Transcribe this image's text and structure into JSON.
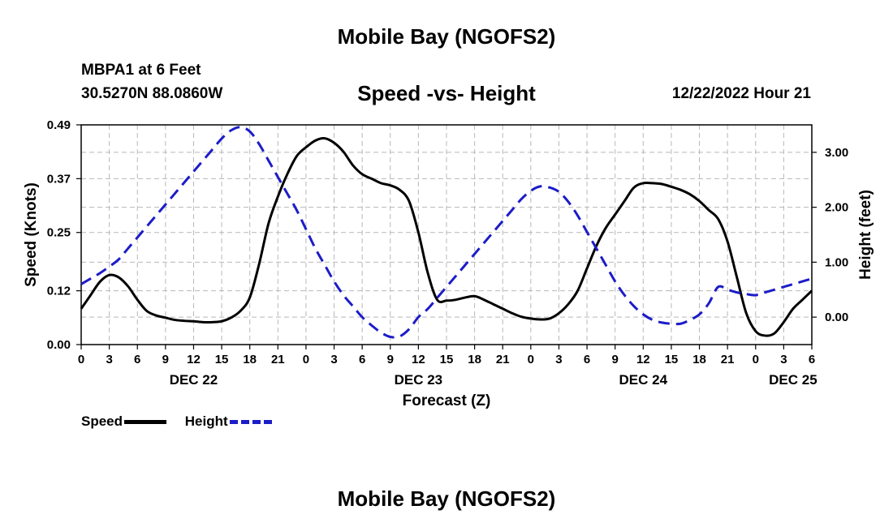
{
  "page": {
    "title": "Mobile Bay (NGOFS2)",
    "title_repeat": "Mobile Bay (NGOFS2)",
    "station": "MBPA1 at 6 Feet",
    "coords": "30.5270N  88.0860W",
    "subtitle": "Speed -vs- Height",
    "datetime": "12/22/2022 Hour 21"
  },
  "legend": {
    "speed_label": "Speed",
    "height_label": "Height"
  },
  "colors": {
    "speed": "#000000",
    "height": "#1c1cc8",
    "grid": "#b8b8b8"
  },
  "chart_data": {
    "type": "line",
    "title": "Speed -vs- Height",
    "xlabel": "Forecast (Z)",
    "ylabel_left": "Speed (Knots)",
    "ylabel_right": "Height (feet)",
    "xlim": [
      0,
      78
    ],
    "ylim_left": [
      0,
      0.49
    ],
    "ylim_right": [
      -0.5,
      3.5
    ],
    "x_ticks": [
      0,
      3,
      6,
      9,
      12,
      15,
      18,
      21,
      24,
      27,
      30,
      33,
      36,
      39,
      42,
      45,
      48,
      51,
      54,
      57,
      60,
      63,
      66,
      69,
      72,
      75,
      78
    ],
    "x_tick_labels": [
      "0",
      "3",
      "6",
      "9",
      "12",
      "15",
      "18",
      "21",
      "0",
      "3",
      "6",
      "9",
      "12",
      "15",
      "18",
      "21",
      "0",
      "3",
      "6",
      "9",
      "12",
      "15",
      "18",
      "21",
      "0",
      "3",
      "6"
    ],
    "day_labels": [
      {
        "x": 12,
        "label": "DEC 22"
      },
      {
        "x": 36,
        "label": "DEC 23"
      },
      {
        "x": 60,
        "label": "DEC 24"
      },
      {
        "x": 76,
        "label": "DEC 25"
      }
    ],
    "y_left_ticks": [
      0.0,
      0.12,
      0.25,
      0.37,
      0.49
    ],
    "y_left_tick_labels": [
      "0.00",
      "0.12",
      "0.25",
      "0.37",
      "0.49"
    ],
    "y_right_ticks": [
      0.0,
      1.0,
      2.0,
      3.0
    ],
    "y_right_tick_labels": [
      "0.00",
      "1.00",
      "2.00",
      "3.00"
    ],
    "grid": true,
    "series": [
      {
        "name": "Speed",
        "axis": "left",
        "style": "solid",
        "x": [
          0,
          1,
          2,
          3,
          4,
          5,
          6,
          7,
          8,
          9,
          10,
          11,
          12,
          13,
          14,
          15,
          16,
          17,
          18,
          19,
          20,
          21,
          22,
          23,
          24,
          25,
          26,
          27,
          28,
          29,
          30,
          31,
          32,
          33,
          34,
          35,
          36,
          37,
          38,
          39,
          40,
          41,
          42,
          43,
          44,
          45,
          46,
          47,
          48,
          49,
          50,
          51,
          52,
          53,
          54,
          55,
          56,
          57,
          58,
          59,
          60,
          61,
          62,
          63,
          64,
          65,
          66,
          67,
          68,
          69,
          70,
          71,
          72,
          73,
          74,
          75,
          76,
          77,
          78
        ],
        "values": [
          0.08,
          0.11,
          0.14,
          0.155,
          0.15,
          0.13,
          0.1,
          0.075,
          0.065,
          0.06,
          0.055,
          0.053,
          0.052,
          0.05,
          0.05,
          0.052,
          0.06,
          0.075,
          0.105,
          0.18,
          0.27,
          0.33,
          0.38,
          0.42,
          0.44,
          0.455,
          0.46,
          0.45,
          0.43,
          0.4,
          0.38,
          0.37,
          0.36,
          0.355,
          0.345,
          0.32,
          0.25,
          0.16,
          0.1,
          0.098,
          0.1,
          0.105,
          0.108,
          0.1,
          0.09,
          0.08,
          0.07,
          0.062,
          0.058,
          0.056,
          0.058,
          0.07,
          0.09,
          0.12,
          0.17,
          0.22,
          0.26,
          0.29,
          0.32,
          0.35,
          0.36,
          0.36,
          0.358,
          0.352,
          0.345,
          0.335,
          0.32,
          0.3,
          0.28,
          0.23,
          0.15,
          0.07,
          0.03,
          0.02,
          0.025,
          0.05,
          0.08,
          0.1,
          0.12
        ]
      },
      {
        "name": "Height",
        "axis": "right",
        "style": "dashed",
        "x": [
          0,
          1,
          2,
          3,
          4,
          5,
          6,
          7,
          8,
          9,
          10,
          11,
          12,
          13,
          14,
          15,
          16,
          17,
          18,
          19,
          20,
          21,
          22,
          23,
          24,
          25,
          26,
          27,
          28,
          29,
          30,
          31,
          32,
          33,
          34,
          35,
          36,
          37,
          38,
          39,
          40,
          41,
          42,
          43,
          44,
          45,
          46,
          47,
          48,
          49,
          50,
          51,
          52,
          53,
          54,
          55,
          56,
          57,
          58,
          59,
          60,
          61,
          62,
          63,
          64,
          65,
          66,
          67,
          68,
          69,
          70,
          71,
          72,
          73,
          74,
          75,
          76,
          77,
          78
        ],
        "values": [
          0.6,
          0.7,
          0.8,
          0.92,
          1.05,
          1.25,
          1.45,
          1.65,
          1.85,
          2.05,
          2.25,
          2.45,
          2.65,
          2.85,
          3.05,
          3.25,
          3.4,
          3.46,
          3.38,
          3.15,
          2.85,
          2.55,
          2.25,
          1.95,
          1.6,
          1.25,
          0.95,
          0.65,
          0.4,
          0.2,
          0.0,
          -0.15,
          -0.28,
          -0.36,
          -0.35,
          -0.22,
          0.0,
          0.15,
          0.35,
          0.55,
          0.75,
          0.95,
          1.15,
          1.35,
          1.55,
          1.75,
          1.95,
          2.15,
          2.3,
          2.38,
          2.36,
          2.28,
          2.1,
          1.85,
          1.55,
          1.25,
          0.95,
          0.65,
          0.4,
          0.2,
          0.05,
          -0.05,
          -0.1,
          -0.12,
          -0.12,
          -0.05,
          0.05,
          0.25,
          0.55,
          0.5,
          0.45,
          0.42,
          0.4,
          0.45,
          0.5,
          0.55,
          0.6,
          0.65,
          0.7
        ]
      }
    ]
  }
}
